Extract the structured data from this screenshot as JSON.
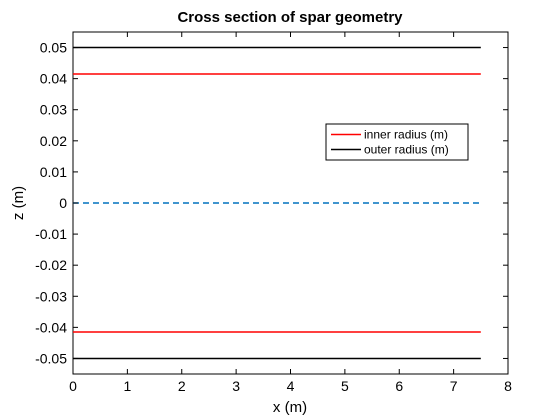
{
  "chart_data": {
    "type": "line",
    "title": "Cross section of spar geometry",
    "xlabel": "x (m)",
    "ylabel": "z (m)",
    "xlim": [
      0,
      8
    ],
    "ylim": [
      -0.055,
      0.055
    ],
    "xticks": [
      0,
      1,
      2,
      3,
      4,
      5,
      6,
      7,
      8
    ],
    "xtick_labels": [
      "0",
      "1",
      "2",
      "3",
      "4",
      "5",
      "6",
      "7",
      "8"
    ],
    "yticks": [
      0.05,
      0.04,
      0.03,
      0.02,
      0.01,
      0,
      -0.01,
      -0.02,
      -0.03,
      -0.04,
      -0.05
    ],
    "ytick_labels": [
      "0.05",
      "0.04",
      "0.03",
      "0.02",
      "0.01",
      "0",
      "-0.01",
      "-0.02",
      "-0.03",
      "-0.04",
      "-0.05"
    ],
    "grid": false,
    "legend_position": "upper-right",
    "series": [
      {
        "name": "inner radius (m)",
        "color": "#ff0000",
        "style": "solid",
        "x": [
          0,
          7.5
        ],
        "y": [
          0.0415,
          0.0415
        ],
        "legend": true
      },
      {
        "name": "outer radius (m)",
        "color": "#000000",
        "style": "solid",
        "x": [
          0,
          7.5
        ],
        "y": [
          0.05,
          0.05
        ],
        "legend": true
      },
      {
        "color": "#ff0000",
        "style": "solid",
        "x": [
          0,
          7.5
        ],
        "y": [
          -0.0415,
          -0.0415
        ],
        "legend": false
      },
      {
        "color": "#000000",
        "style": "solid",
        "x": [
          0,
          7.5
        ],
        "y": [
          -0.05,
          -0.05
        ],
        "legend": false
      },
      {
        "color": "#0072bd",
        "style": "dashed",
        "x": [
          0,
          7.5
        ],
        "y": [
          0,
          0
        ],
        "legend": false
      }
    ]
  }
}
